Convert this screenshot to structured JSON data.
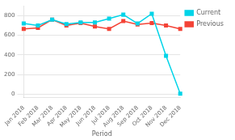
{
  "chart_data": {
    "type": "line",
    "xlabel": "Period",
    "categories": [
      "Jan 2018",
      "Feb 2018",
      "Mar 2018",
      "Apr 2018",
      "May 2018",
      "Jun 2018",
      "Jul 2018",
      "Aug 2018",
      "Sep 2018",
      "Oct 2018",
      "Nov 2018",
      "Dec 2018"
    ],
    "series": [
      {
        "name": "Current",
        "color": "#00d4e8",
        "values": [
          720,
          700,
          760,
          715,
          730,
          730,
          770,
          810,
          720,
          820,
          390,
          5
        ]
      },
      {
        "name": "Previous",
        "color": "#f44336",
        "values": [
          665,
          675,
          760,
          700,
          725,
          690,
          665,
          745,
          710,
          725,
          700,
          665
        ]
      }
    ],
    "marker": "square",
    "ylim": [
      -30,
      900
    ],
    "yticks": [
      0,
      200,
      400,
      600,
      800
    ],
    "grid": "y",
    "legend": "right"
  }
}
